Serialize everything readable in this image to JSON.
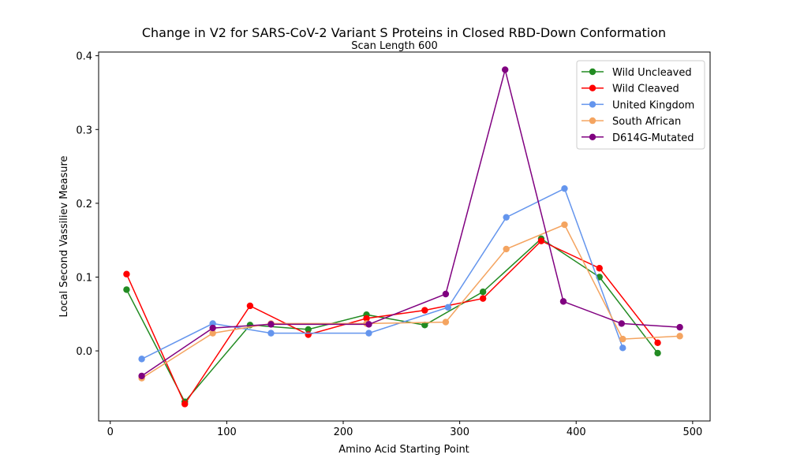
{
  "chart_data": {
    "type": "line",
    "title": "Change in V2 for SARS-CoV-2 Variant S Proteins in Closed RBD-Down Conformation",
    "subtitle": "Scan Length 600",
    "xlabel": "Amino Acid Starting Point",
    "ylabel": "Local Second Vassiliev Measure",
    "xlim": [
      -10,
      515
    ],
    "ylim": [
      -0.095,
      0.405
    ],
    "xticks": [
      0,
      100,
      200,
      300,
      400,
      500
    ],
    "yticks": [
      0.0,
      0.1,
      0.2,
      0.3,
      0.4
    ],
    "grid": false,
    "legend_position": "top-right",
    "series": [
      {
        "name": "Wild Uncleaved",
        "color": "#228b22",
        "x": [
          14,
          64,
          120,
          170,
          220,
          270,
          320,
          370,
          420,
          470
        ],
        "y": [
          0.083,
          -0.069,
          0.035,
          0.029,
          0.049,
          0.035,
          0.08,
          0.152,
          0.1,
          -0.003
        ]
      },
      {
        "name": "Wild Cleaved",
        "color": "#ff0000",
        "x": [
          14,
          64,
          120,
          170,
          220,
          270,
          320,
          370,
          420,
          470
        ],
        "y": [
          0.104,
          -0.072,
          0.061,
          0.022,
          0.044,
          0.055,
          0.071,
          0.149,
          0.112,
          0.011
        ]
      },
      {
        "name": "United Kingdom",
        "color": "#6495ed",
        "x": [
          27,
          88,
          138,
          222,
          290,
          340,
          390,
          440
        ],
        "y": [
          -0.011,
          0.037,
          0.024,
          0.024,
          0.059,
          0.181,
          0.22,
          0.004
        ]
      },
      {
        "name": "South African",
        "color": "#f4a460",
        "x": [
          27,
          88,
          138,
          220,
          288,
          340,
          390,
          440,
          489
        ],
        "y": [
          -0.037,
          0.024,
          0.037,
          0.037,
          0.039,
          0.138,
          0.171,
          0.016,
          0.02
        ]
      },
      {
        "name": "D614G-Mutated",
        "color": "#800080",
        "x": [
          27,
          88,
          138,
          222,
          288,
          339,
          389,
          439,
          489
        ],
        "y": [
          -0.034,
          0.031,
          0.036,
          0.036,
          0.077,
          0.381,
          0.067,
          0.037,
          0.032
        ]
      }
    ]
  }
}
